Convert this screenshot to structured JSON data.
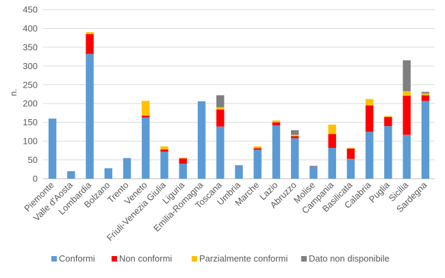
{
  "chart_data": {
    "type": "bar",
    "stacked": true,
    "title": "",
    "xlabel": "",
    "ylabel": "n.",
    "ylim": [
      0,
      450
    ],
    "y_ticks": [
      0,
      50,
      100,
      150,
      200,
      250,
      300,
      350,
      400,
      450
    ],
    "grid": true,
    "legend_position": "bottom",
    "categories": [
      "Piemonte",
      "Valle d'Aosta",
      "Lombardia",
      "Bolzano",
      "Trento",
      "Veneto",
      "Friuli-Venezia Giulia",
      "Liguria",
      "Emilia-Romagna",
      "Toscana",
      "Umbria",
      "Marche",
      "Lazio",
      "Abruzzo",
      "Molise",
      "Campania",
      "Basilicata",
      "Calabria",
      "Puglia",
      "Sicilia",
      "Sardegna"
    ],
    "series": [
      {
        "name": "Conformi",
        "color": "#5B9BD5",
        "values": [
          160,
          20,
          332,
          28,
          55,
          163,
          72,
          40,
          206,
          139,
          36,
          77,
          142,
          108,
          33,
          82,
          53,
          125,
          140,
          117,
          207
        ]
      },
      {
        "name": "Non conformi",
        "color": "#FF0000",
        "values": [
          0,
          0,
          53,
          0,
          0,
          5,
          6,
          14,
          0,
          45,
          0,
          4,
          8,
          5,
          1,
          37,
          27,
          70,
          24,
          104,
          15
        ]
      },
      {
        "name": "Parzialmente conformi",
        "color": "#FFC000",
        "values": [
          0,
          0,
          5,
          0,
          0,
          39,
          8,
          2,
          0,
          6,
          0,
          5,
          5,
          4,
          0,
          25,
          2,
          17,
          3,
          12,
          5
        ]
      },
      {
        "name": "Dato non disponibile",
        "color": "#7F7F7F",
        "values": [
          0,
          0,
          0,
          0,
          0,
          0,
          0,
          0,
          0,
          32,
          0,
          0,
          0,
          12,
          0,
          0,
          0,
          0,
          0,
          82,
          4
        ]
      }
    ]
  }
}
